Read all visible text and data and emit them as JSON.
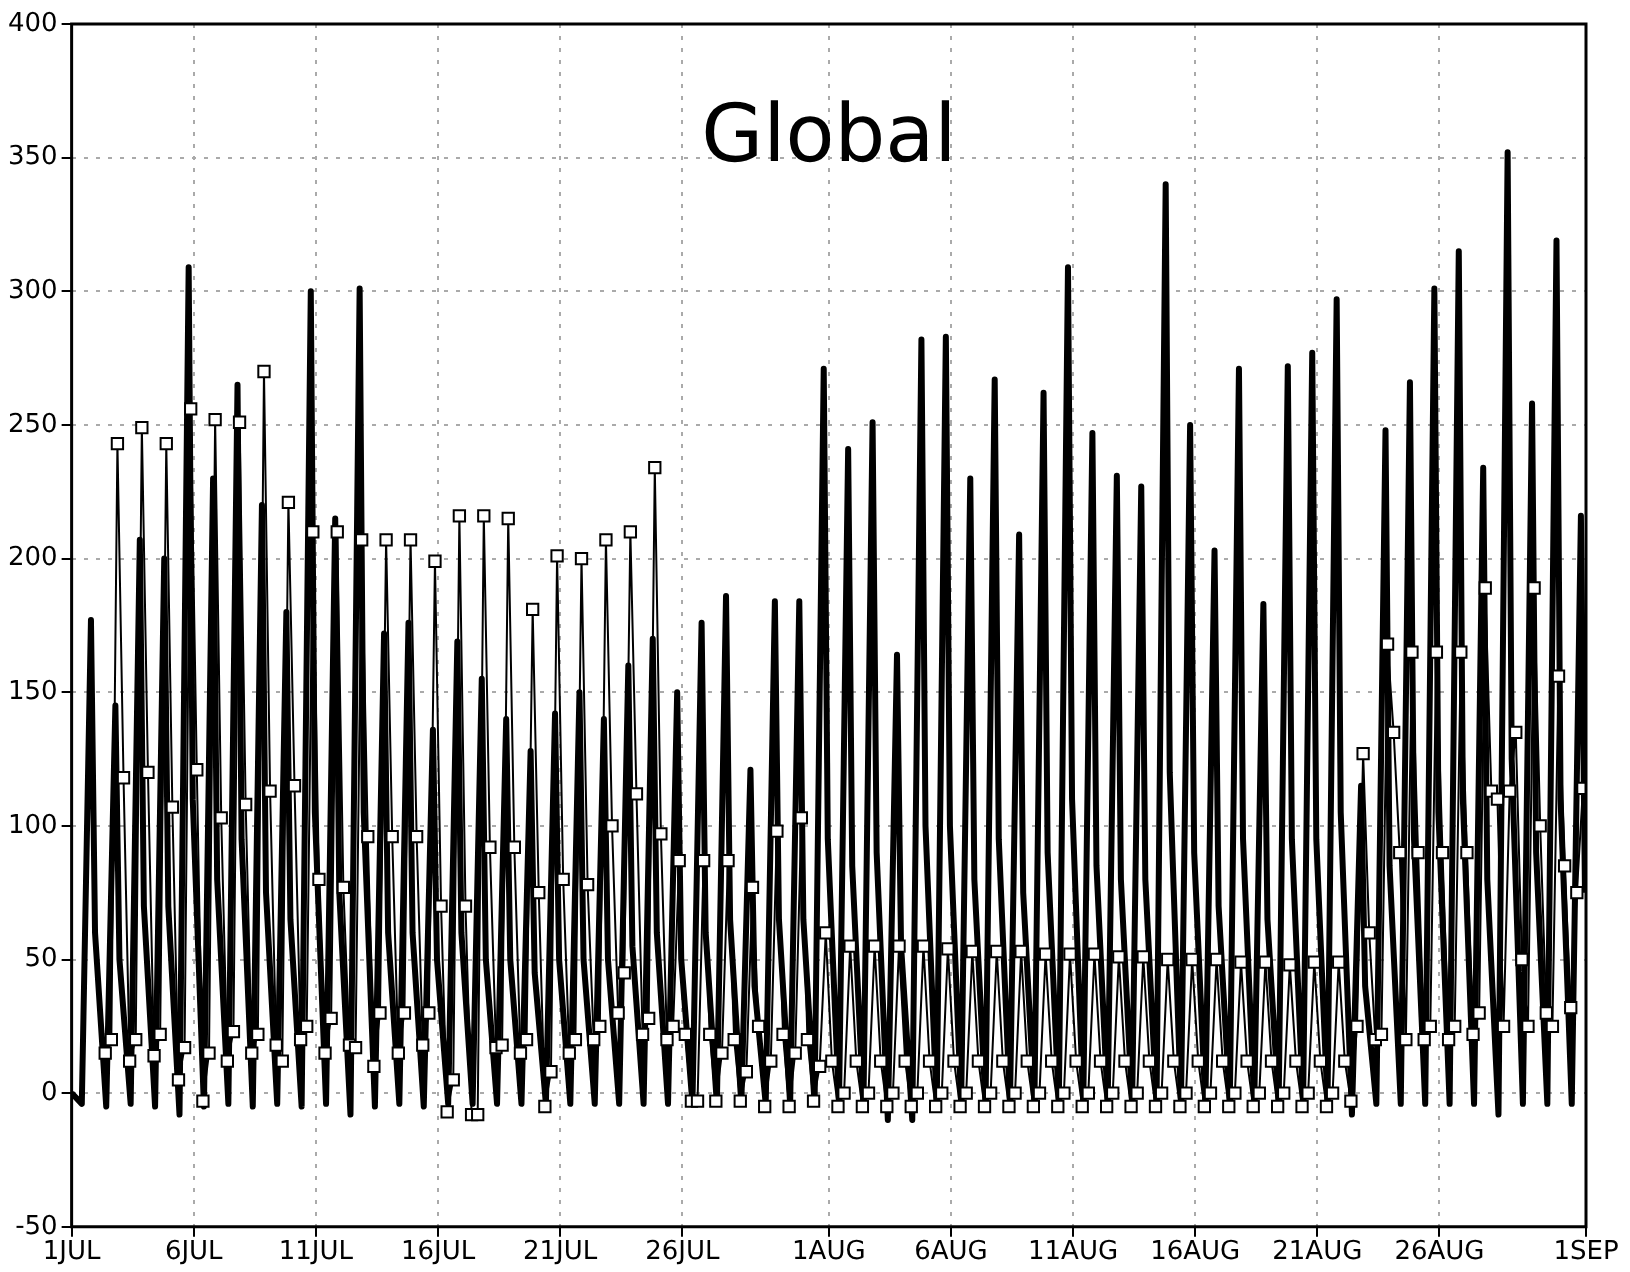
{
  "chart_data": {
    "type": "line",
    "title": "Global",
    "xlim": [
      "--07-01",
      "--09-01"
    ],
    "ylim": [
      -50,
      400
    ],
    "xticks": [
      {
        "value": "--07-01",
        "label": "1JUL"
      },
      {
        "value": "--07-06",
        "label": "6JUL"
      },
      {
        "value": "--07-11",
        "label": "11JUL"
      },
      {
        "value": "--07-16",
        "label": "16JUL"
      },
      {
        "value": "--07-21",
        "label": "21JUL"
      },
      {
        "value": "--07-26",
        "label": "26JUL"
      },
      {
        "value": "--08-01",
        "label": "1AUG"
      },
      {
        "value": "--08-06",
        "label": "6AUG"
      },
      {
        "value": "--08-11",
        "label": "11AUG"
      },
      {
        "value": "--08-16",
        "label": "16AUG"
      },
      {
        "value": "--08-21",
        "label": "21AUG"
      },
      {
        "value": "--08-26",
        "label": "26AUG"
      },
      {
        "value": "--09-01",
        "label": "1SEP"
      }
    ],
    "yticks": [
      -50,
      0,
      50,
      100,
      150,
      200,
      250,
      300,
      350,
      400
    ],
    "grid": true,
    "legend": false,
    "series": [
      {
        "color": "#000000",
        "marker": "none",
        "x": [
          "--07-01T00:00",
          "--07-01T10:00",
          "--07-01T19:00",
          "--07-01T23:00",
          "--07-02T10:00",
          "--07-02T19:00",
          "--07-02T23:00",
          "--07-03T10:00",
          "--07-03T19:00",
          "--07-03T23:00",
          "--07-04T10:00",
          "--07-04T19:00",
          "--07-04T23:00",
          "--07-05T10:00",
          "--07-05T19:00",
          "--07-05T23:00",
          "--07-06T10:00",
          "--07-06T19:00",
          "--07-06T23:00",
          "--07-07T10:00",
          "--07-07T19:00",
          "--07-07T23:00",
          "--07-08T10:00",
          "--07-08T19:00",
          "--07-08T23:00",
          "--07-09T10:00",
          "--07-09T19:00",
          "--07-09T23:00",
          "--07-10T10:00",
          "--07-10T19:00",
          "--07-10T23:00",
          "--07-11T10:00",
          "--07-11T19:00",
          "--07-11T23:00",
          "--07-12T10:00",
          "--07-12T19:00",
          "--07-12T23:00",
          "--07-13T10:00",
          "--07-13T19:00",
          "--07-13T23:00",
          "--07-14T10:00",
          "--07-14T19:00",
          "--07-14T23:00",
          "--07-15T10:00",
          "--07-15T19:00",
          "--07-15T23:00",
          "--07-16T10:00",
          "--07-16T19:00",
          "--07-16T23:00",
          "--07-17T10:00",
          "--07-17T19:00",
          "--07-17T23:00",
          "--07-18T10:00",
          "--07-18T19:00",
          "--07-18T23:00",
          "--07-19T10:00",
          "--07-19T19:00",
          "--07-19T23:00",
          "--07-20T10:00",
          "--07-20T19:00",
          "--07-20T23:00",
          "--07-21T10:00",
          "--07-21T19:00",
          "--07-21T23:00",
          "--07-22T10:00",
          "--07-22T19:00",
          "--07-22T23:00",
          "--07-23T10:00",
          "--07-23T19:00",
          "--07-23T23:00",
          "--07-24T10:00",
          "--07-24T19:00",
          "--07-24T23:00",
          "--07-25T10:00",
          "--07-25T19:00",
          "--07-25T23:00",
          "--07-26T10:00",
          "--07-26T19:00",
          "--07-26T23:00",
          "--07-27T10:00",
          "--07-27T19:00",
          "--07-27T23:00",
          "--07-28T10:00",
          "--07-28T19:00",
          "--07-28T23:00",
          "--07-29T10:00",
          "--07-29T19:00",
          "--07-29T23:00",
          "--07-30T10:00",
          "--07-30T19:00",
          "--07-30T23:00",
          "--07-31T10:00",
          "--07-31T19:00",
          "--07-31T23:00",
          "--08-01T10:00",
          "--08-01T19:00",
          "--08-01T23:00",
          "--08-02T10:00",
          "--08-02T19:00",
          "--08-02T23:00",
          "--08-03T10:00",
          "--08-03T19:00",
          "--08-03T23:00",
          "--08-04T10:00",
          "--08-04T19:00",
          "--08-04T23:00",
          "--08-05T10:00",
          "--08-05T19:00",
          "--08-05T23:00",
          "--08-06T10:00",
          "--08-06T19:00",
          "--08-06T23:00",
          "--08-07T10:00",
          "--08-07T19:00",
          "--08-07T23:00",
          "--08-08T10:00",
          "--08-08T19:00",
          "--08-08T23:00",
          "--08-09T10:00",
          "--08-09T19:00",
          "--08-09T23:00",
          "--08-10T10:00",
          "--08-10T19:00",
          "--08-10T23:00",
          "--08-11T10:00",
          "--08-11T19:00",
          "--08-11T23:00",
          "--08-12T10:00",
          "--08-12T19:00",
          "--08-12T23:00",
          "--08-13T10:00",
          "--08-13T19:00",
          "--08-13T23:00",
          "--08-14T10:00",
          "--08-14T19:00",
          "--08-14T23:00",
          "--08-15T10:00",
          "--08-15T19:00",
          "--08-15T23:00",
          "--08-16T10:00",
          "--08-16T19:00",
          "--08-16T23:00",
          "--08-17T10:00",
          "--08-17T19:00",
          "--08-17T23:00",
          "--08-18T10:00",
          "--08-18T19:00",
          "--08-18T23:00",
          "--08-19T10:00",
          "--08-19T19:00",
          "--08-19T23:00",
          "--08-20T10:00",
          "--08-20T19:00",
          "--08-20T23:00",
          "--08-21T10:00",
          "--08-21T19:00",
          "--08-21T23:00",
          "--08-22T10:00",
          "--08-22T19:00",
          "--08-22T23:00",
          "--08-23T10:00",
          "--08-23T19:00",
          "--08-23T23:00",
          "--08-24T10:00",
          "--08-24T19:00",
          "--08-24T23:00",
          "--08-25T10:00",
          "--08-25T19:00",
          "--08-25T23:00",
          "--08-26T10:00",
          "--08-26T19:00",
          "--08-26T23:00",
          "--08-27T10:00",
          "--08-27T19:00",
          "--08-27T23:00",
          "--08-28T10:00",
          "--08-28T19:00",
          "--08-28T23:00",
          "--08-29T10:00",
          "--08-29T19:00",
          "--08-29T23:00",
          "--08-30T10:00",
          "--08-30T19:00",
          "--08-30T23:00",
          "--08-31T10:00",
          "--08-31T19:00",
          "--08-31T23:00"
        ],
        "values": [
          0,
          -4,
          177,
          60,
          -5,
          145,
          50,
          -4,
          207,
          70,
          -5,
          200,
          70,
          -8,
          309,
          110,
          -5,
          230,
          80,
          -4,
          265,
          95,
          -5,
          220,
          75,
          -4,
          180,
          65,
          -5,
          300,
          105,
          -4,
          215,
          75,
          -8,
          301,
          105,
          -5,
          172,
          60,
          -4,
          176,
          60,
          -5,
          136,
          50,
          -4,
          169,
          60,
          -4,
          155,
          50,
          -4,
          140,
          50,
          -4,
          128,
          45,
          -4,
          142,
          50,
          -4,
          150,
          50,
          -4,
          140,
          50,
          -4,
          160,
          55,
          -4,
          170,
          60,
          -4,
          150,
          50,
          -4,
          176,
          60,
          -4,
          186,
          65,
          -4,
          121,
          40,
          -4,
          184,
          65,
          -4,
          184,
          65,
          -4,
          271,
          95,
          -4,
          241,
          85,
          -5,
          251,
          90,
          -10,
          164,
          55,
          -10,
          282,
          100,
          -5,
          283,
          100,
          -4,
          230,
          80,
          -4,
          267,
          95,
          -4,
          209,
          75,
          -4,
          262,
          90,
          -4,
          309,
          110,
          -4,
          247,
          85,
          -4,
          231,
          80,
          -4,
          227,
          80,
          -4,
          340,
          120,
          -4,
          250,
          90,
          -4,
          203,
          70,
          -4,
          271,
          95,
          -4,
          183,
          65,
          -4,
          272,
          95,
          -4,
          277,
          95,
          -4,
          297,
          105,
          -8,
          115,
          40,
          -4,
          248,
          85,
          -4,
          266,
          95,
          -4,
          301,
          105,
          -4,
          315,
          110,
          -4,
          234,
          80,
          -8,
          352,
          125,
          -4,
          258,
          90,
          -4,
          319,
          110,
          -4,
          216,
          75
        ]
      },
      {
        "color": "#000000",
        "marker": "square",
        "x": [
          "--07-02T09:00",
          "--07-02T15:00",
          "--07-02T21:00",
          "--07-03T03:00",
          "--07-03T09:00",
          "--07-03T15:00",
          "--07-03T21:00",
          "--07-04T03:00",
          "--07-04T09:00",
          "--07-04T15:00",
          "--07-04T21:00",
          "--07-05T03:00",
          "--07-05T09:00",
          "--07-05T15:00",
          "--07-05T21:00",
          "--07-06T03:00",
          "--07-06T09:00",
          "--07-06T15:00",
          "--07-06T21:00",
          "--07-07T03:00",
          "--07-07T09:00",
          "--07-07T15:00",
          "--07-07T21:00",
          "--07-08T03:00",
          "--07-08T09:00",
          "--07-08T15:00",
          "--07-08T21:00",
          "--07-09T03:00",
          "--07-09T09:00",
          "--07-09T15:00",
          "--07-09T21:00",
          "--07-10T03:00",
          "--07-10T09:00",
          "--07-10T15:00",
          "--07-10T21:00",
          "--07-11T03:00",
          "--07-11T09:00",
          "--07-11T15:00",
          "--07-11T21:00",
          "--07-12T03:00",
          "--07-12T09:00",
          "--07-12T15:00",
          "--07-12T21:00",
          "--07-13T03:00",
          "--07-13T09:00",
          "--07-13T15:00",
          "--07-13T21:00",
          "--07-14T03:00",
          "--07-14T09:00",
          "--07-14T15:00",
          "--07-14T21:00",
          "--07-15T03:00",
          "--07-15T09:00",
          "--07-15T15:00",
          "--07-15T21:00",
          "--07-16T03:00",
          "--07-16T09:00",
          "--07-16T15:00",
          "--07-16T21:00",
          "--07-17T03:00",
          "--07-17T09:00",
          "--07-17T15:00",
          "--07-17T21:00",
          "--07-18T03:00",
          "--07-18T09:00",
          "--07-18T15:00",
          "--07-18T21:00",
          "--07-19T03:00",
          "--07-19T09:00",
          "--07-19T15:00",
          "--07-19T21:00",
          "--07-20T03:00",
          "--07-20T09:00",
          "--07-20T15:00",
          "--07-20T21:00",
          "--07-21T03:00",
          "--07-21T09:00",
          "--07-21T15:00",
          "--07-21T21:00",
          "--07-22T03:00",
          "--07-22T09:00",
          "--07-22T15:00",
          "--07-22T21:00",
          "--07-23T03:00",
          "--07-23T09:00",
          "--07-23T15:00",
          "--07-23T21:00",
          "--07-24T03:00",
          "--07-24T09:00",
          "--07-24T15:00",
          "--07-24T21:00",
          "--07-25T03:00",
          "--07-25T09:00",
          "--07-25T15:00",
          "--07-25T21:00",
          "--07-26T03:00",
          "--07-26T09:00",
          "--07-26T15:00",
          "--07-26T21:00",
          "--07-27T03:00",
          "--07-27T09:00",
          "--07-27T15:00",
          "--07-27T21:00",
          "--07-28T03:00",
          "--07-28T09:00",
          "--07-28T15:00",
          "--07-28T21:00",
          "--07-29T03:00",
          "--07-29T09:00",
          "--07-29T15:00",
          "--07-29T21:00",
          "--07-30T03:00",
          "--07-30T09:00",
          "--07-30T15:00",
          "--07-30T21:00",
          "--07-31T03:00",
          "--07-31T09:00",
          "--07-31T15:00",
          "--07-31T21:00",
          "--08-01T03:00",
          "--08-01T09:00",
          "--08-01T15:00",
          "--08-01T21:00",
          "--08-02T03:00",
          "--08-02T09:00",
          "--08-02T15:00",
          "--08-02T21:00",
          "--08-03T03:00",
          "--08-03T09:00",
          "--08-03T15:00",
          "--08-03T21:00",
          "--08-04T03:00",
          "--08-04T09:00",
          "--08-04T15:00",
          "--08-04T21:00",
          "--08-05T03:00",
          "--08-05T09:00",
          "--08-05T15:00",
          "--08-05T21:00",
          "--08-06T03:00",
          "--08-06T09:00",
          "--08-06T15:00",
          "--08-06T21:00",
          "--08-07T03:00",
          "--08-07T09:00",
          "--08-07T15:00",
          "--08-07T21:00",
          "--08-08T03:00",
          "--08-08T09:00",
          "--08-08T15:00",
          "--08-08T21:00",
          "--08-09T03:00",
          "--08-09T09:00",
          "--08-09T15:00",
          "--08-09T21:00",
          "--08-10T03:00",
          "--08-10T09:00",
          "--08-10T15:00",
          "--08-10T21:00",
          "--08-11T03:00",
          "--08-11T09:00",
          "--08-11T15:00",
          "--08-11T21:00",
          "--08-12T03:00",
          "--08-12T09:00",
          "--08-12T15:00",
          "--08-12T21:00",
          "--08-13T03:00",
          "--08-13T09:00",
          "--08-13T15:00",
          "--08-13T21:00",
          "--08-14T03:00",
          "--08-14T09:00",
          "--08-14T15:00",
          "--08-14T21:00",
          "--08-15T03:00",
          "--08-15T09:00",
          "--08-15T15:00",
          "--08-15T21:00",
          "--08-16T03:00",
          "--08-16T09:00",
          "--08-16T15:00",
          "--08-16T21:00",
          "--08-17T03:00",
          "--08-17T09:00",
          "--08-17T15:00",
          "--08-17T21:00",
          "--08-18T03:00",
          "--08-18T09:00",
          "--08-18T15:00",
          "--08-18T21:00",
          "--08-19T03:00",
          "--08-19T09:00",
          "--08-19T15:00",
          "--08-19T21:00",
          "--08-20T03:00",
          "--08-20T09:00",
          "--08-20T15:00",
          "--08-20T21:00",
          "--08-21T03:00",
          "--08-21T09:00",
          "--08-21T15:00",
          "--08-21T21:00",
          "--08-22T03:00",
          "--08-22T09:00",
          "--08-22T15:00",
          "--08-22T21:00",
          "--08-23T03:00",
          "--08-23T09:00",
          "--08-23T15:00",
          "--08-23T21:00",
          "--08-24T03:00",
          "--08-24T09:00",
          "--08-24T15:00",
          "--08-24T21:00",
          "--08-25T03:00",
          "--08-25T09:00",
          "--08-25T15:00",
          "--08-25T21:00",
          "--08-26T03:00",
          "--08-26T09:00",
          "--08-26T15:00",
          "--08-26T21:00",
          "--08-27T03:00",
          "--08-27T09:00",
          "--08-27T15:00",
          "--08-27T21:00",
          "--08-28T03:00",
          "--08-28T09:00",
          "--08-28T15:00",
          "--08-28T21:00",
          "--08-29T03:00",
          "--08-29T09:00",
          "--08-29T15:00",
          "--08-29T21:00",
          "--08-30T03:00",
          "--08-30T09:00",
          "--08-30T15:00",
          "--08-30T21:00",
          "--08-31T03:00",
          "--08-31T09:00",
          "--08-31T15:00",
          "--08-31T21:00"
        ],
        "values": [
          15,
          20,
          243,
          118,
          12,
          20,
          249,
          120,
          14,
          22,
          243,
          107,
          5,
          17,
          256,
          121,
          -3,
          15,
          252,
          103,
          12,
          23,
          251,
          108,
          15,
          22,
          270,
          113,
          18,
          12,
          221,
          115,
          20,
          25,
          210,
          80,
          15,
          28,
          210,
          77,
          18,
          17,
          207,
          96,
          10,
          30,
          207,
          96,
          15,
          30,
          207,
          96,
          18,
          30,
          199,
          70,
          -7,
          5,
          216,
          70,
          -8,
          -8,
          216,
          92,
          17,
          18,
          215,
          92,
          15,
          20,
          181,
          75,
          -5,
          8,
          201,
          80,
          15,
          20,
          200,
          78,
          20,
          25,
          207,
          100,
          30,
          45,
          210,
          112,
          22,
          28,
          234,
          97,
          20,
          25,
          87,
          22,
          -3,
          -3,
          87,
          22,
          -3,
          15,
          87,
          20,
          -3,
          8,
          77,
          25,
          -5,
          12,
          98,
          22,
          -5,
          15,
          103,
          20,
          -3,
          10,
          60,
          12,
          -5,
          0,
          55,
          12,
          -5,
          0,
          55,
          12,
          -5,
          0,
          55,
          12,
          -5,
          0,
          55,
          12,
          -5,
          0,
          54,
          12,
          -5,
          0,
          53,
          12,
          -5,
          0,
          53,
          12,
          -5,
          0,
          53,
          12,
          -5,
          0,
          52,
          12,
          -5,
          0,
          52,
          12,
          -5,
          0,
          52,
          12,
          -5,
          0,
          51,
          12,
          -5,
          0,
          51,
          12,
          -5,
          0,
          50,
          12,
          -5,
          0,
          50,
          12,
          -5,
          0,
          50,
          12,
          -5,
          0,
          49,
          12,
          -5,
          0,
          49,
          12,
          -5,
          0,
          48,
          12,
          -5,
          0,
          49,
          12,
          -5,
          0,
          49,
          12,
          -3,
          25,
          127,
          60,
          20,
          22,
          168,
          135,
          90,
          20,
          165,
          90,
          20,
          25,
          165,
          90,
          20,
          25,
          165,
          90,
          22,
          30,
          189,
          113,
          110,
          25,
          113,
          135,
          50,
          25,
          189,
          100,
          30,
          25,
          156,
          85,
          32,
          75,
          114
        ]
      }
    ]
  }
}
